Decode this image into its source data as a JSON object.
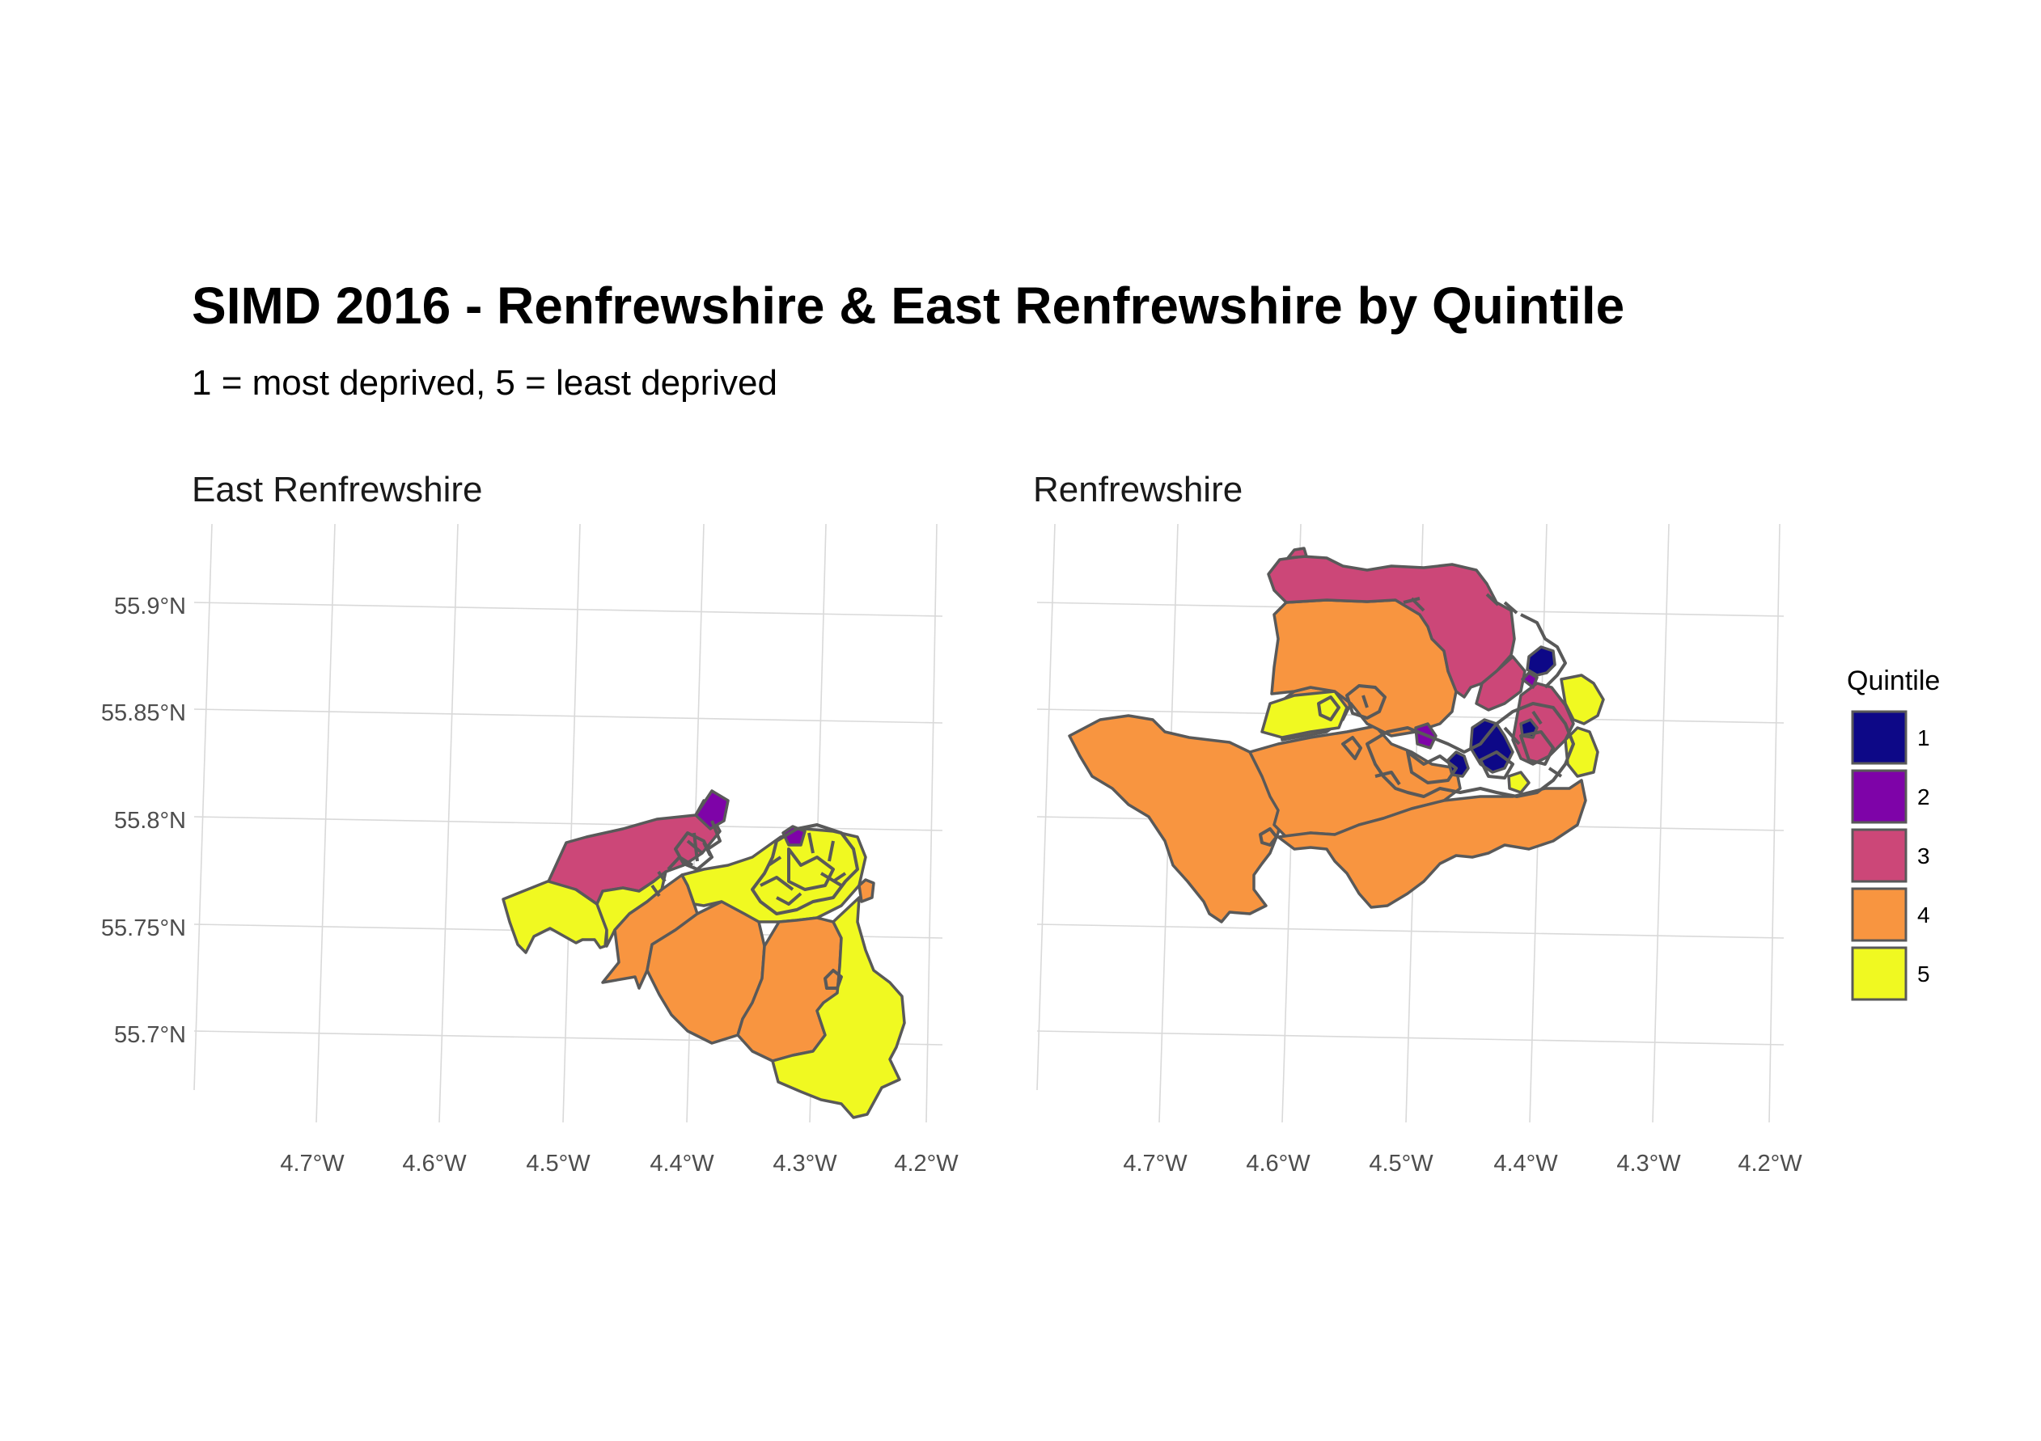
{
  "title": "SIMD 2016 - Renfrewshire & East Renfrewshire by Quintile",
  "subtitle": "1 = most deprived, 5 = least deprived",
  "panels": [
    {
      "name": "East Renfrewshire",
      "y_ticks": [
        "55.9°N",
        "55.85°N",
        "55.8°N",
        "55.75°N",
        "55.7°N"
      ],
      "x_ticks": [
        "4.7°W",
        "4.6°W",
        "4.5°W",
        "4.4°W",
        "4.3°W",
        "4.2°W"
      ]
    },
    {
      "name": "Renfrewshire",
      "y_ticks": [
        "55.9°N",
        "55.85°N",
        "55.8°N",
        "55.75°N",
        "55.7°N"
      ],
      "x_ticks": [
        "4.7°W",
        "4.6°W",
        "4.5°W",
        "4.4°W",
        "4.3°W",
        "4.2°W"
      ]
    }
  ],
  "legend": {
    "title": "Quintile",
    "items": [
      {
        "label": "1",
        "color": "#0d0887"
      },
      {
        "label": "2",
        "color": "#7e03a8"
      },
      {
        "label": "3",
        "color": "#cc4778"
      },
      {
        "label": "4",
        "color": "#f89540"
      },
      {
        "label": "5",
        "color": "#f0f921"
      }
    ]
  }
}
